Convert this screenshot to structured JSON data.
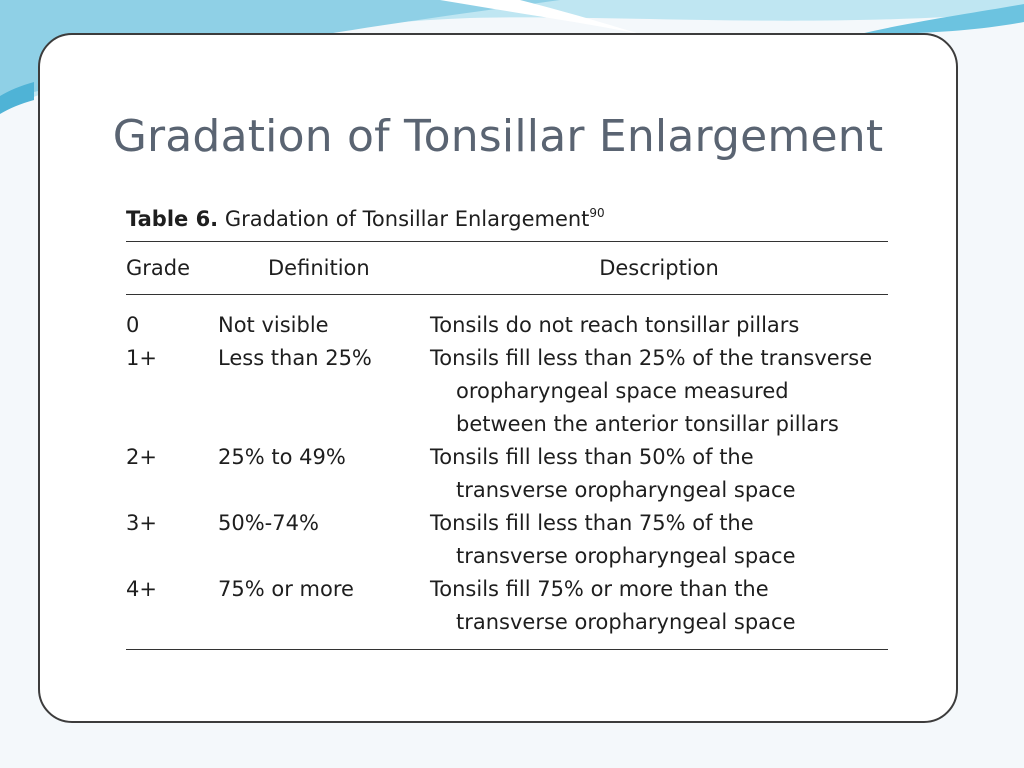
{
  "slide": {
    "title": "Gradation of Tonsillar Enlargement"
  },
  "table": {
    "caption_bold": "Table 6.",
    "caption_text": "Gradation of Tonsillar Enlargement",
    "caption_sup": "90",
    "headers": {
      "grade": "Grade",
      "definition": "Definition",
      "description": "Description"
    },
    "rows": [
      {
        "grade": "0",
        "definition": "Not visible",
        "description": [
          "Tonsils do not reach tonsillar pillars"
        ]
      },
      {
        "grade": "1+",
        "definition": "Less than 25%",
        "description": [
          "Tonsils fill less than 25% of the transverse",
          "oropharyngeal space measured",
          "between the anterior tonsillar pillars"
        ]
      },
      {
        "grade": "2+",
        "definition": "25% to 49%",
        "description": [
          "Tonsils fill less than 50% of the",
          "transverse oropharyngeal space"
        ]
      },
      {
        "grade": "3+",
        "definition": "50%-74%",
        "description": [
          "Tonsils fill less than 75% of the",
          "transverse oropharyngeal space"
        ]
      },
      {
        "grade": "4+",
        "definition": "75% or more",
        "description": [
          "Tonsils fill 75% or more than the",
          "transverse oropharyngeal space"
        ]
      }
    ]
  },
  "colors": {
    "title": "#5a6472",
    "border": "#3c3c3c",
    "accent_light": "#b8e4f0",
    "accent_dark": "#4fb3d6"
  }
}
